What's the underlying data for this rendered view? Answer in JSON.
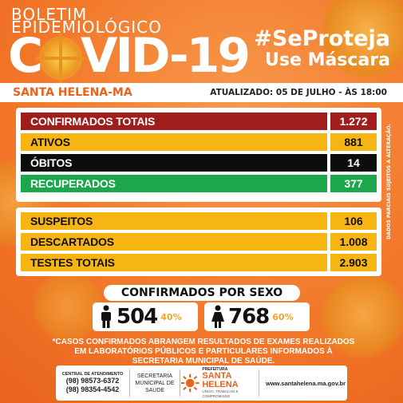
{
  "header": {
    "line1": "BOLETIM",
    "line2": "EPIDEMIOLÓGICO",
    "covid_c": "C",
    "covid_rest": "VID-19",
    "slogan1": "#SeProteja",
    "slogan2": "Use Máscara"
  },
  "location": {
    "city": "SANTA HELENA-MA",
    "updated": "ATUALIZADO: 05 DE JULHO - ÀS 18:00"
  },
  "stats_main": [
    {
      "label": "CONFIRMADOS TOTAIS",
      "value": "1.272",
      "bg": "#a01d1c",
      "valbg": "#a01d1c",
      "color": "#ffffff"
    },
    {
      "label": "ATIVOS",
      "value": "881",
      "bg": "#f7b514",
      "valbg": "#f7b514",
      "color": "#111111"
    },
    {
      "label": "ÓBITOS",
      "value": "14",
      "bg": "#0d0d0d",
      "valbg": "#0d0d0d",
      "color": "#ffffff"
    },
    {
      "label": "RECUPERADOS",
      "value": "377",
      "bg": "#1ca84a",
      "valbg": "#1ca84a",
      "color": "#ffffff"
    }
  ],
  "stats_secondary": [
    {
      "label": "SUSPEITOS",
      "value": "106"
    },
    {
      "label": "DESCARTADOS",
      "value": "1.008"
    },
    {
      "label": "TESTES TOTAIS",
      "value": "2.903"
    }
  ],
  "sidenote": "DADOS PARCIAIS SUJEITOS A ALTERAÇÃO.",
  "sex": {
    "title": "CONFIRMADOS POR SEXO",
    "male_count": "504",
    "male_pct": "40%",
    "female_count": "768",
    "female_pct": "60%"
  },
  "footnote": "*CASOS CONFIRMADOS ABRANGEM RESULTADOS DE EXAMES REALIZADOS EM LABORATÓRIOS PÚBLICOS E PARTICULARES INFORMADOS À SECRETARIA MUNICIPAL DE SAÚDE.",
  "footer": {
    "central_label": "CENTRAL DE ATENDIMENTO",
    "phone1": "(98) 98573-6372",
    "phone2": "(98) 98354-4542",
    "sec1": "SECRETARIA",
    "sec2": "MUNICIPAL DE",
    "sec3": "SAÚDE",
    "logo_pref": "PREFEITURA",
    "logo_name1": "SANTA",
    "logo_name2": "HELENA",
    "logo_tag": "UNIÃO, TRABALHO E COMPROMISSO",
    "site": "www.santahelena.ma.gov.br"
  },
  "colors": {
    "orange": "#f3782a",
    "accent_yellow": "#f7b514",
    "confirmed_red": "#a01d1c",
    "recovered_green": "#1ca84a"
  }
}
